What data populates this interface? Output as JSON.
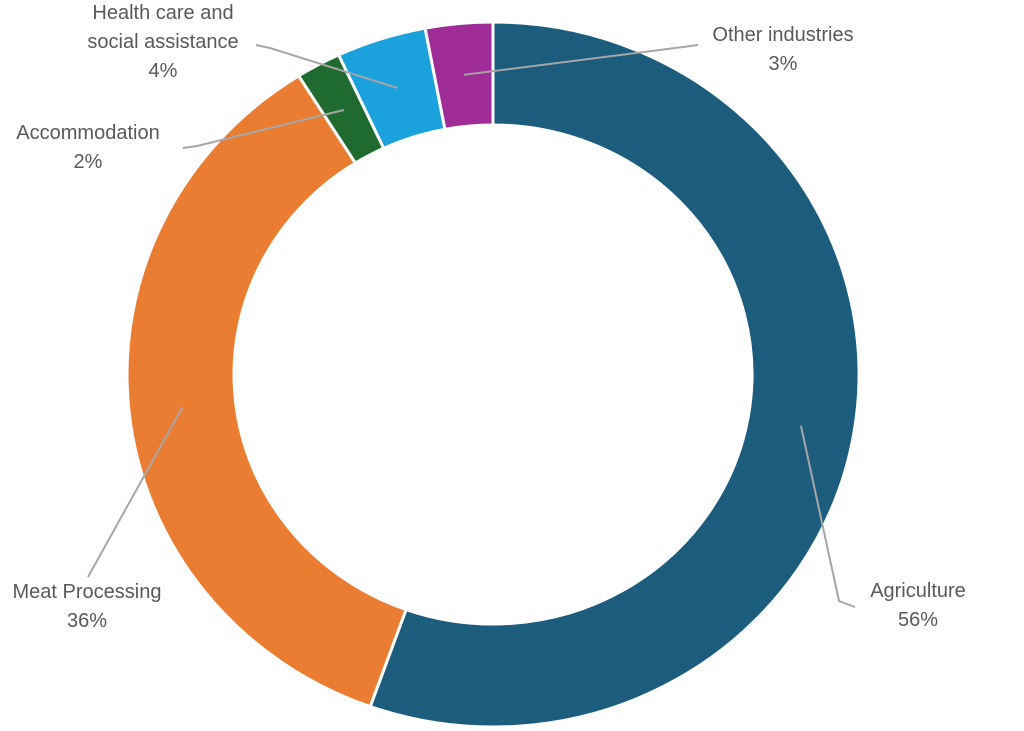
{
  "chart_data": {
    "type": "pie",
    "subtype": "donut",
    "title": "",
    "hole_ratio": 0.71,
    "start_angle_deg": 0,
    "clockwise": true,
    "categories": [
      "Agriculture",
      "Meat Processing",
      "Accommodation",
      "Health care and social assistance",
      "Other industries"
    ],
    "values": [
      56,
      36,
      2,
      4,
      3
    ],
    "slices": [
      {
        "id": "agriculture",
        "label": "Agriculture",
        "pct_label": "56%",
        "value": 56,
        "color": "#1C5D7D"
      },
      {
        "id": "meat-processing",
        "label": "Meat Processing",
        "pct_label": "36%",
        "value": 36,
        "color": "#EA7D31"
      },
      {
        "id": "accommodation",
        "label": "Accommodation",
        "pct_label": "2%",
        "value": 2,
        "color": "#1F6B2F"
      },
      {
        "id": "health-care",
        "label": "Health care and social assistance",
        "pct_label": "4%",
        "value": 4,
        "color": "#1BA1DB"
      },
      {
        "id": "other-industries",
        "label": "Other industries",
        "pct_label": "3%",
        "value": 3,
        "color": "#A02C97"
      }
    ],
    "label_color": "#595959",
    "leader_color": "#A6A6A6",
    "separator_color": "#FFFFFF",
    "legend": "none",
    "grid": false
  }
}
